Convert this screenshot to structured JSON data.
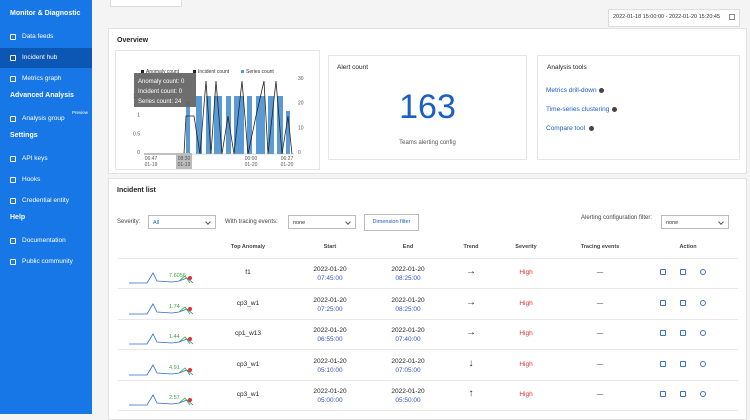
{
  "nav": {
    "sections": [
      {
        "title": "Monitor & Diagnostic",
        "items": [
          "Data feeds",
          "Incident hub",
          "Metrics graph"
        ]
      },
      {
        "title": "Advanced Analysis",
        "items": [
          "Analysis group"
        ]
      },
      {
        "title": "Settings",
        "items": [
          "API keys",
          "Hooks",
          "Credential entity"
        ]
      },
      {
        "title": "Help",
        "items": [
          "Documentation",
          "Public community"
        ]
      }
    ],
    "badge": "Preview"
  },
  "date_range": "2022-01-18 15:00:00 - 2022-01-20 15:20:45",
  "overview": {
    "title": "Overview",
    "chart": {
      "legend": [
        "Anomaly count",
        "Incident count",
        "Series count"
      ],
      "tooltip": [
        "Anomaly count: 0",
        "Incident count: 0",
        "Series count: 24"
      ],
      "left_ticks": [
        "2",
        "1.5",
        "1",
        "0.5",
        "0"
      ],
      "right_ticks": [
        "30",
        "20",
        "10",
        "0"
      ],
      "x_ticks": [
        [
          "06:47",
          "01-19"
        ],
        [
          "08:30",
          "01-19"
        ],
        [
          "00:00",
          "01-20"
        ],
        [
          "06:27",
          "01-20"
        ]
      ]
    },
    "alert": {
      "title": "Alert count",
      "count": "163",
      "link": "Teams alerting config"
    },
    "tools": {
      "title": "Analysis tools",
      "items": [
        "Metrics drill-down",
        "Time-series clustering",
        "Compare tool"
      ]
    }
  },
  "incidents": {
    "title": "Incident list",
    "filters": {
      "severity_label": "Severity:",
      "severity_value": "All",
      "tracing_label": "With tracing events:",
      "tracing_value": "none",
      "dimension_button": "Dimension filter",
      "alerting_label": "Alerting configuration filter:",
      "alerting_value": "none"
    },
    "headers": [
      "Top Anomaly",
      "Start",
      "End",
      "Trend",
      "Severity",
      "Tracing events",
      "Action"
    ],
    "rows": [
      {
        "spark": "7.6056",
        "anomaly": "f1",
        "start_date": "2022-01-20",
        "start_time": "07:45:00",
        "end_date": "2022-01-20",
        "end_time": "08:25:00",
        "trend": "→",
        "severity": "High",
        "tracing": "—"
      },
      {
        "spark": "1.74",
        "anomaly": "cp3_w1",
        "start_date": "2022-01-20",
        "start_time": "07:25:00",
        "end_date": "2022-01-20",
        "end_time": "08:25:00",
        "trend": "→",
        "severity": "High",
        "tracing": "—"
      },
      {
        "spark": "1.44",
        "anomaly": "cp1_w13",
        "start_date": "2022-01-20",
        "start_time": "06:55:00",
        "end_date": "2022-01-20",
        "end_time": "07:40:00",
        "trend": "→",
        "severity": "High",
        "tracing": "—"
      },
      {
        "spark": "4.91",
        "anomaly": "cp3_w1",
        "start_date": "2022-01-20",
        "start_time": "05:10:00",
        "end_date": "2022-01-20",
        "end_time": "07:05:00",
        "trend": "↓",
        "severity": "High",
        "tracing": "—"
      },
      {
        "spark": "2.57",
        "anomaly": "cp3_w1",
        "start_date": "2022-01-20",
        "start_time": "05:00:00",
        "end_date": "2022-01-20",
        "end_time": "05:50:00",
        "trend": "↑",
        "severity": "High",
        "tracing": "—"
      }
    ]
  }
}
